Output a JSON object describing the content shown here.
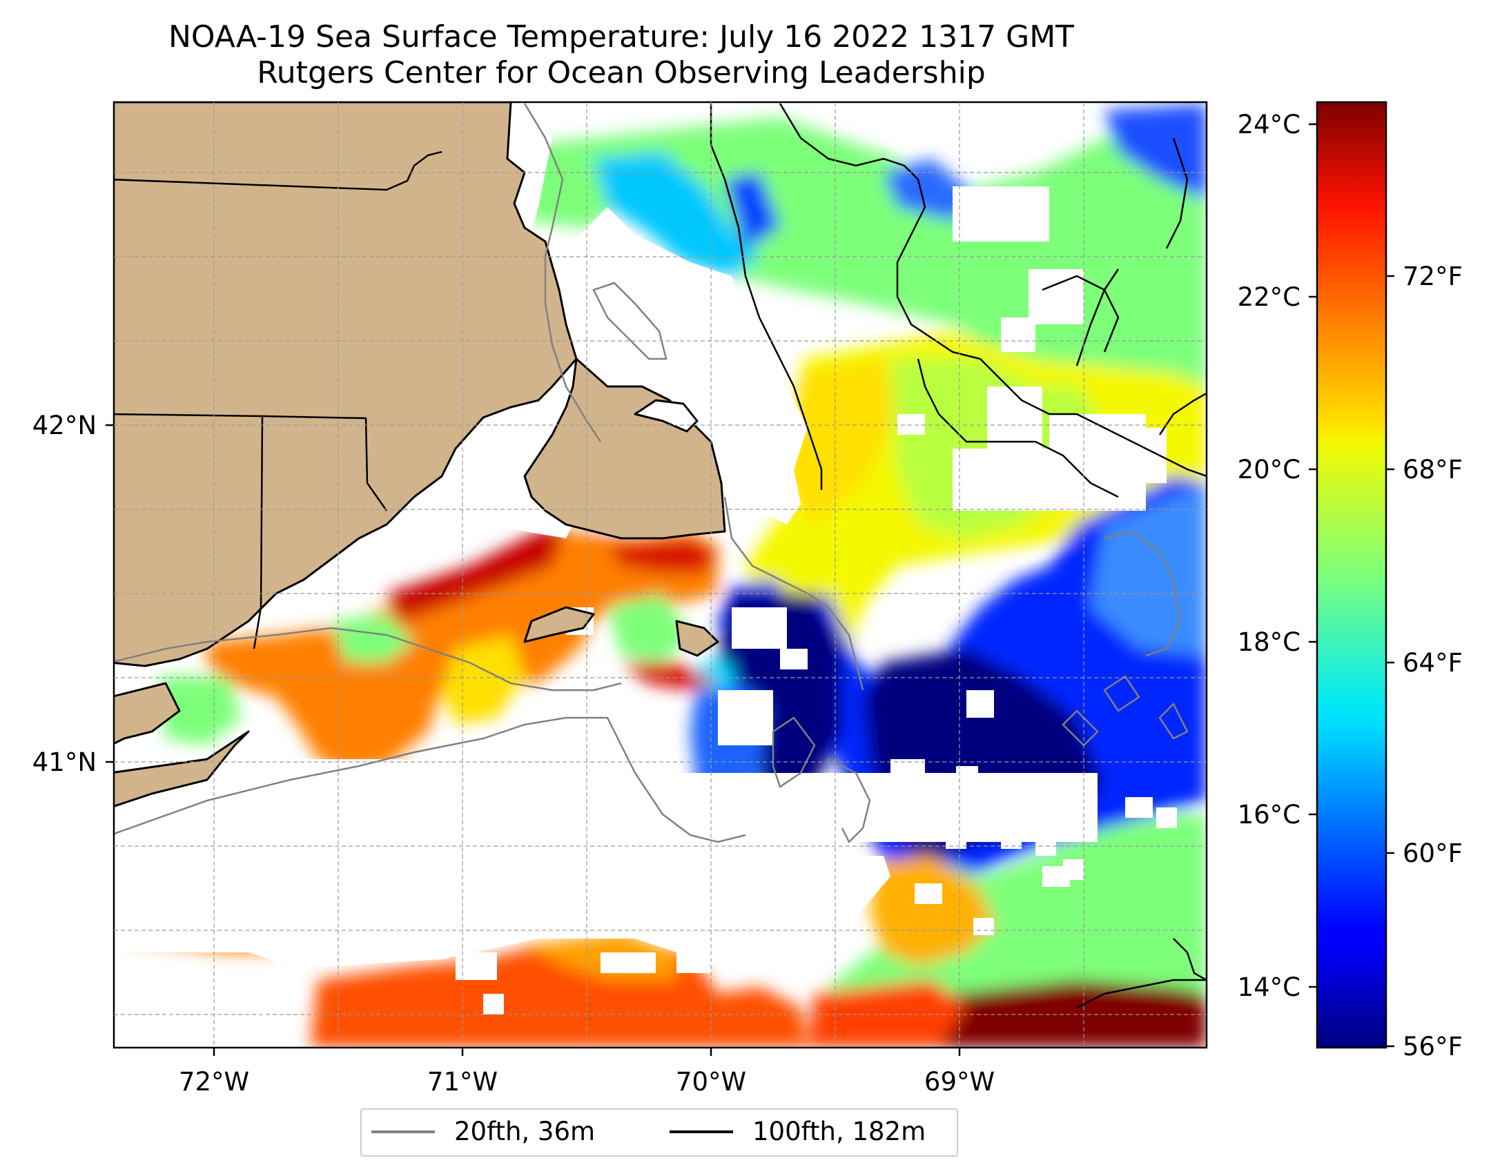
{
  "title": {
    "line1": "NOAA-19 Sea Surface Temperature: July 16 2022 1317 GMT",
    "line2": "Rutgers Center for Ocean Observing Leadership"
  },
  "map": {
    "x_ticks": [
      "72°W",
      "71°W",
      "70°W",
      "69°W"
    ],
    "y_ticks": [
      "42°N",
      "41°N"
    ],
    "land_color": "#d2b48c",
    "gridlines": true
  },
  "colorbar": {
    "colormap": "jet",
    "celsius_ticks": [
      "24°C",
      "22°C",
      "20°C",
      "18°C",
      "16°C",
      "14°C"
    ],
    "fahrenheit_ticks": [
      "72°F",
      "68°F",
      "64°F",
      "60°F",
      "56°F"
    ]
  },
  "legend": {
    "items": [
      {
        "label": "20fth, 36m",
        "color": "#808080"
      },
      {
        "label": "100fth, 182m",
        "color": "#000000"
      }
    ]
  }
}
